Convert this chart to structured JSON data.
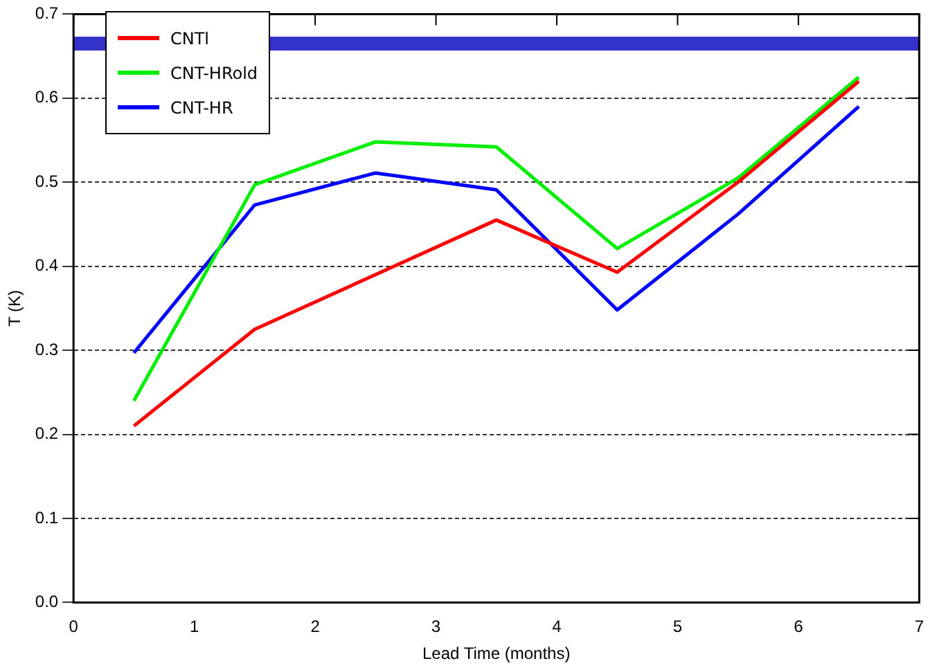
{
  "chart_data": {
    "type": "line",
    "xlabel": "Lead Time (months)",
    "ylabel": "T (K)",
    "x": [
      0.5,
      1.5,
      2.5,
      3.5,
      4.5,
      5.5,
      6.5
    ],
    "series": [
      {
        "name": "CNTl",
        "color": "#ff0000",
        "values": [
          0.21,
          0.325,
          0.39,
          0.455,
          0.393,
          0.5,
          0.62
        ]
      },
      {
        "name": "CNT-HRold",
        "color": "#00ee00",
        "values": [
          0.24,
          0.497,
          0.548,
          0.542,
          0.421,
          0.505,
          0.625
        ]
      },
      {
        "name": "CNT-HR",
        "color": "#0000ff",
        "values": [
          0.297,
          0.473,
          0.511,
          0.491,
          0.348,
          0.462,
          0.59
        ]
      }
    ],
    "xlim": [
      0,
      7
    ],
    "xticks": [
      0,
      1,
      2,
      3,
      4,
      5,
      6,
      7
    ],
    "ylim": [
      0,
      0.7
    ],
    "yticks": [
      {
        "value": 0,
        "label": "0.0"
      },
      {
        "value": 0.1,
        "label": "0.1"
      },
      {
        "value": 0.2,
        "label": "0.2"
      },
      {
        "value": 0.3,
        "label": "0.3"
      },
      {
        "value": 0.4,
        "label": "0.4"
      },
      {
        "value": 0.5,
        "label": "0.5"
      },
      {
        "value": 0.6,
        "label": "0.6"
      },
      {
        "value": 0.7,
        "label": "0.7"
      }
    ],
    "ref_lines": [
      {
        "axis": "y",
        "value": 0.665,
        "color": "#3333cc"
      }
    ],
    "grid": "y",
    "legend": "top left",
    "line_style": "solid",
    "marker": "none"
  }
}
